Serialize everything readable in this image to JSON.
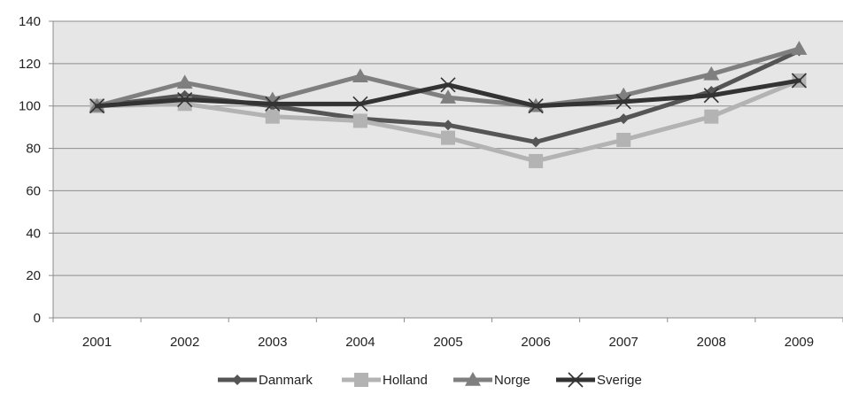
{
  "chart_data": {
    "type": "line",
    "title": "",
    "xlabel": "",
    "ylabel": "",
    "categories": [
      "2001",
      "2002",
      "2003",
      "2004",
      "2005",
      "2006",
      "2007",
      "2008",
      "2009"
    ],
    "ylim": [
      0,
      140
    ],
    "yticks": [
      0,
      20,
      40,
      60,
      80,
      100,
      120,
      140
    ],
    "grid": "horizontal",
    "plot_background": "#e6e6e6",
    "legend_position": "bottom",
    "series": [
      {
        "name": "Danmark",
        "color": "#555555",
        "marker": "diamond",
        "values": [
          100,
          105,
          100,
          94,
          91,
          83,
          94,
          107,
          126
        ]
      },
      {
        "name": "Holland",
        "color": "#b3b3b3",
        "marker": "square",
        "values": [
          100,
          101,
          95,
          93,
          85,
          74,
          84,
          95,
          112
        ]
      },
      {
        "name": "Norge",
        "color": "#7f7f7f",
        "marker": "triangle",
        "values": [
          100,
          111,
          103,
          114,
          104,
          100,
          105,
          115,
          127
        ]
      },
      {
        "name": "Sverige",
        "color": "#333333",
        "marker": "x",
        "values": [
          100,
          103,
          101,
          101,
          110,
          100,
          102,
          105,
          112
        ]
      }
    ]
  }
}
